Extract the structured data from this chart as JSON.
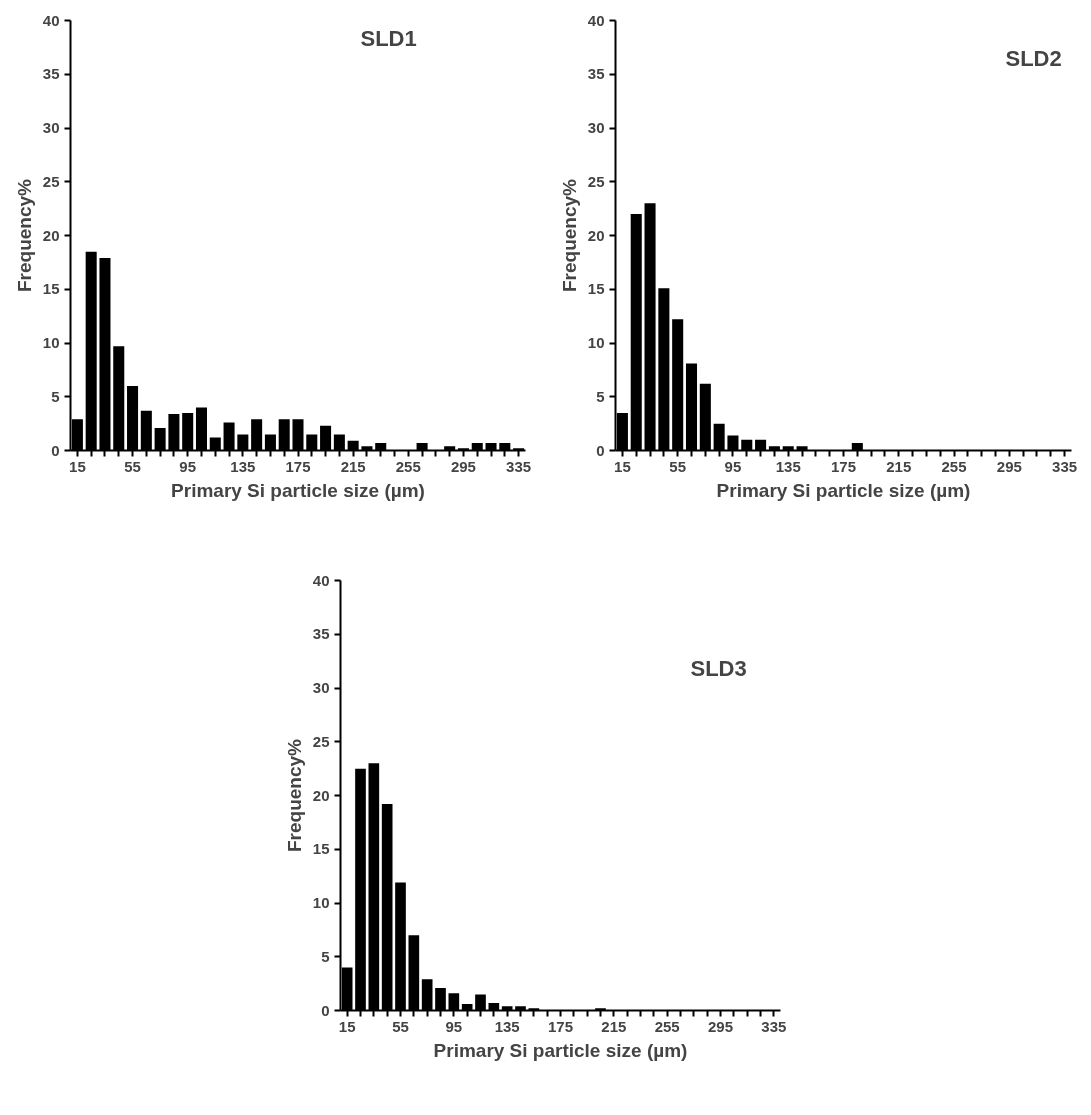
{
  "chart_data": [
    {
      "type": "bar",
      "categories": [
        "15",
        null,
        null,
        null,
        "55",
        null,
        null,
        null,
        "95",
        null,
        null,
        null,
        "135",
        null,
        null,
        null,
        "175",
        null,
        null,
        null,
        "215",
        null,
        null,
        null,
        "255",
        null,
        null,
        null,
        "295",
        null,
        null,
        null,
        "335"
      ],
      "values": [
        2.9,
        18.5,
        17.9,
        9.7,
        6.0,
        3.7,
        2.1,
        3.4,
        3.5,
        4.0,
        1.2,
        2.6,
        1.5,
        2.9,
        1.5,
        2.9,
        2.9,
        1.5,
        2.3,
        1.5,
        0.9,
        0.4,
        0.7,
        0,
        0,
        0.7,
        0,
        0.4,
        0.2,
        0.7,
        0.7,
        0.7,
        0.2
      ],
      "color": "#000000",
      "xlabel": "Primary Si particle size (µm)",
      "ylabel": "Frequency%",
      "ylim": [
        0,
        40
      ],
      "yticks": [
        0,
        5,
        10,
        15,
        20,
        25,
        30,
        35,
        40
      ],
      "grid": false,
      "annotations": [
        "SLD1"
      ]
    },
    {
      "type": "bar",
      "categories": [
        "15",
        null,
        null,
        null,
        "55",
        null,
        null,
        null,
        "95",
        null,
        null,
        null,
        "135",
        null,
        null,
        null,
        "175",
        null,
        null,
        null,
        "215",
        null,
        null,
        null,
        "255",
        null,
        null,
        null,
        "295",
        null,
        null,
        null,
        "335"
      ],
      "values": [
        3.5,
        22.0,
        23.0,
        15.1,
        12.2,
        8.1,
        6.2,
        2.5,
        1.4,
        1.0,
        1.0,
        0.4,
        0.4,
        0.4,
        0,
        0,
        0,
        0.7,
        0,
        0,
        0,
        0,
        0,
        0,
        0,
        0,
        0,
        0,
        0,
        0,
        0,
        0,
        0
      ],
      "color": "#000000",
      "xlabel": "Primary Si particle size (µm)",
      "ylabel": "Frequency%",
      "ylim": [
        0,
        40
      ],
      "yticks": [
        0,
        5,
        10,
        15,
        20,
        25,
        30,
        35,
        40
      ],
      "grid": false,
      "annotations": [
        "SLD2"
      ]
    },
    {
      "type": "bar",
      "categories": [
        "15",
        null,
        null,
        null,
        "55",
        null,
        null,
        null,
        "95",
        null,
        null,
        null,
        "135",
        null,
        null,
        null,
        "175",
        null,
        null,
        null,
        "215",
        null,
        null,
        null,
        "255",
        null,
        null,
        null,
        "295",
        null,
        null,
        null,
        "335"
      ],
      "values": [
        4.0,
        22.5,
        23.0,
        19.2,
        11.9,
        7.0,
        2.9,
        2.1,
        1.6,
        0.6,
        1.5,
        0.7,
        0.4,
        0.4,
        0.2,
        0,
        0,
        0,
        0,
        0.2,
        0,
        0,
        0,
        0,
        0,
        0,
        0,
        0,
        0,
        0,
        0,
        0,
        0
      ],
      "color": "#000000",
      "xlabel": "Primary Si particle size (µm)",
      "ylabel": "Frequency%",
      "ylim": [
        0,
        40
      ],
      "yticks": [
        0,
        5,
        10,
        15,
        20,
        25,
        30,
        35,
        40
      ],
      "grid": false,
      "annotations": [
        "SLD3"
      ]
    }
  ]
}
